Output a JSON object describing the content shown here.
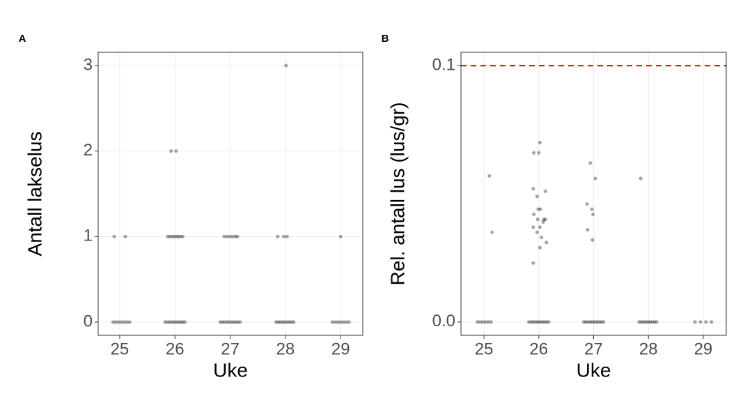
{
  "chart_data": [
    {
      "type": "scatter",
      "panel_label": "A",
      "x_label": "Uke",
      "y_label": "Antall lakselus",
      "color": "#000000",
      "alpha": 0.35,
      "grid": true,
      "xlim": [
        24.61,
        29.4
      ],
      "xticks": [
        25,
        26,
        27,
        28,
        29
      ],
      "ylim": [
        -0.155,
        3.155
      ],
      "yticks": [
        0,
        1,
        2,
        3
      ],
      "x": [
        24.9,
        25.1,
        25.87,
        25.91,
        25.95,
        25.99,
        26.03,
        26.06,
        26.1,
        26.14,
        25.93,
        26.02,
        26.89,
        26.94,
        26.99,
        27.04,
        27.09,
        27.13,
        27.86,
        27.97,
        28.03,
        28.01,
        29.0,
        24.88,
        24.93,
        24.98,
        25.03,
        25.08,
        25.13,
        25.18,
        25.82,
        25.86,
        25.9,
        25.94,
        25.98,
        26.02,
        26.06,
        26.1,
        26.14,
        26.18,
        26.82,
        26.86,
        26.9,
        26.94,
        26.98,
        27.02,
        27.06,
        27.1,
        27.14,
        27.18,
        27.83,
        27.87,
        27.91,
        27.95,
        27.99,
        28.03,
        28.07,
        28.11,
        28.15,
        28.85,
        28.9,
        28.95,
        29.0,
        29.05,
        29.1,
        29.15
      ],
      "values": [
        1,
        1,
        1,
        1,
        1,
        1,
        1,
        1,
        1,
        1,
        2,
        2,
        1,
        1,
        1,
        1,
        1,
        1,
        1,
        1,
        1,
        3,
        1,
        0,
        0,
        0,
        0,
        0,
        0,
        0,
        0,
        0,
        0,
        0,
        0,
        0,
        0,
        0,
        0,
        0,
        0,
        0,
        0,
        0,
        0,
        0,
        0,
        0,
        0,
        0,
        0,
        0,
        0,
        0,
        0,
        0,
        0,
        0,
        0,
        0,
        0,
        0,
        0,
        0,
        0,
        0
      ]
    },
    {
      "type": "scatter",
      "panel_label": "B",
      "x_label": "Uke",
      "y_label": "Rel. antall lus (lus/gr)",
      "color": "#000000",
      "alpha": 0.35,
      "grid": true,
      "xlim": [
        24.58,
        29.42
      ],
      "xticks": [
        25,
        26,
        27,
        28,
        29
      ],
      "ylim": [
        -0.0052,
        0.1052
      ],
      "yticks": [
        {
          "value": 0,
          "label": "0.0"
        },
        0.1
      ],
      "hline": {
        "value": 0.1,
        "color": "#e31a1c"
      },
      "x": [
        25.1,
        25.15,
        25.91,
        26.02,
        26.0,
        25.9,
        26.12,
        25.97,
        25.99,
        26.03,
        25.91,
        25.98,
        26.09,
        26.12,
        25.9,
        26.02,
        26.08,
        25.97,
        26.05,
        26.14,
        26.02,
        25.9,
        26.94,
        27.03,
        26.88,
        26.97,
        26.99,
        26.89,
        26.98,
        27.86,
        24.88,
        24.93,
        24.98,
        25.03,
        25.08,
        25.13,
        25.82,
        25.86,
        25.9,
        25.94,
        25.98,
        26.02,
        26.06,
        26.1,
        26.14,
        26.18,
        26.82,
        26.86,
        26.9,
        26.94,
        26.98,
        27.02,
        27.06,
        27.1,
        27.14,
        27.18,
        27.83,
        27.87,
        27.91,
        27.95,
        27.99,
        28.03,
        28.07,
        28.11,
        28.15,
        28.85,
        28.95,
        29.05,
        29.15
      ],
      "values": [
        0.057,
        0.035,
        0.066,
        0.07,
        0.066,
        0.052,
        0.051,
        0.049,
        0.044,
        0.044,
        0.042,
        0.04,
        0.04,
        0.04,
        0.037,
        0.037,
        0.039,
        0.035,
        0.033,
        0.031,
        0.029,
        0.023,
        0.062,
        0.056,
        0.046,
        0.044,
        0.042,
        0.036,
        0.032,
        0.056,
        0,
        0,
        0,
        0,
        0,
        0,
        0,
        0,
        0,
        0,
        0,
        0,
        0,
        0,
        0,
        0,
        0,
        0,
        0,
        0,
        0,
        0,
        0,
        0,
        0,
        0,
        0,
        0,
        0,
        0,
        0,
        0,
        0,
        0,
        0,
        0,
        0,
        0,
        0
      ]
    }
  ]
}
